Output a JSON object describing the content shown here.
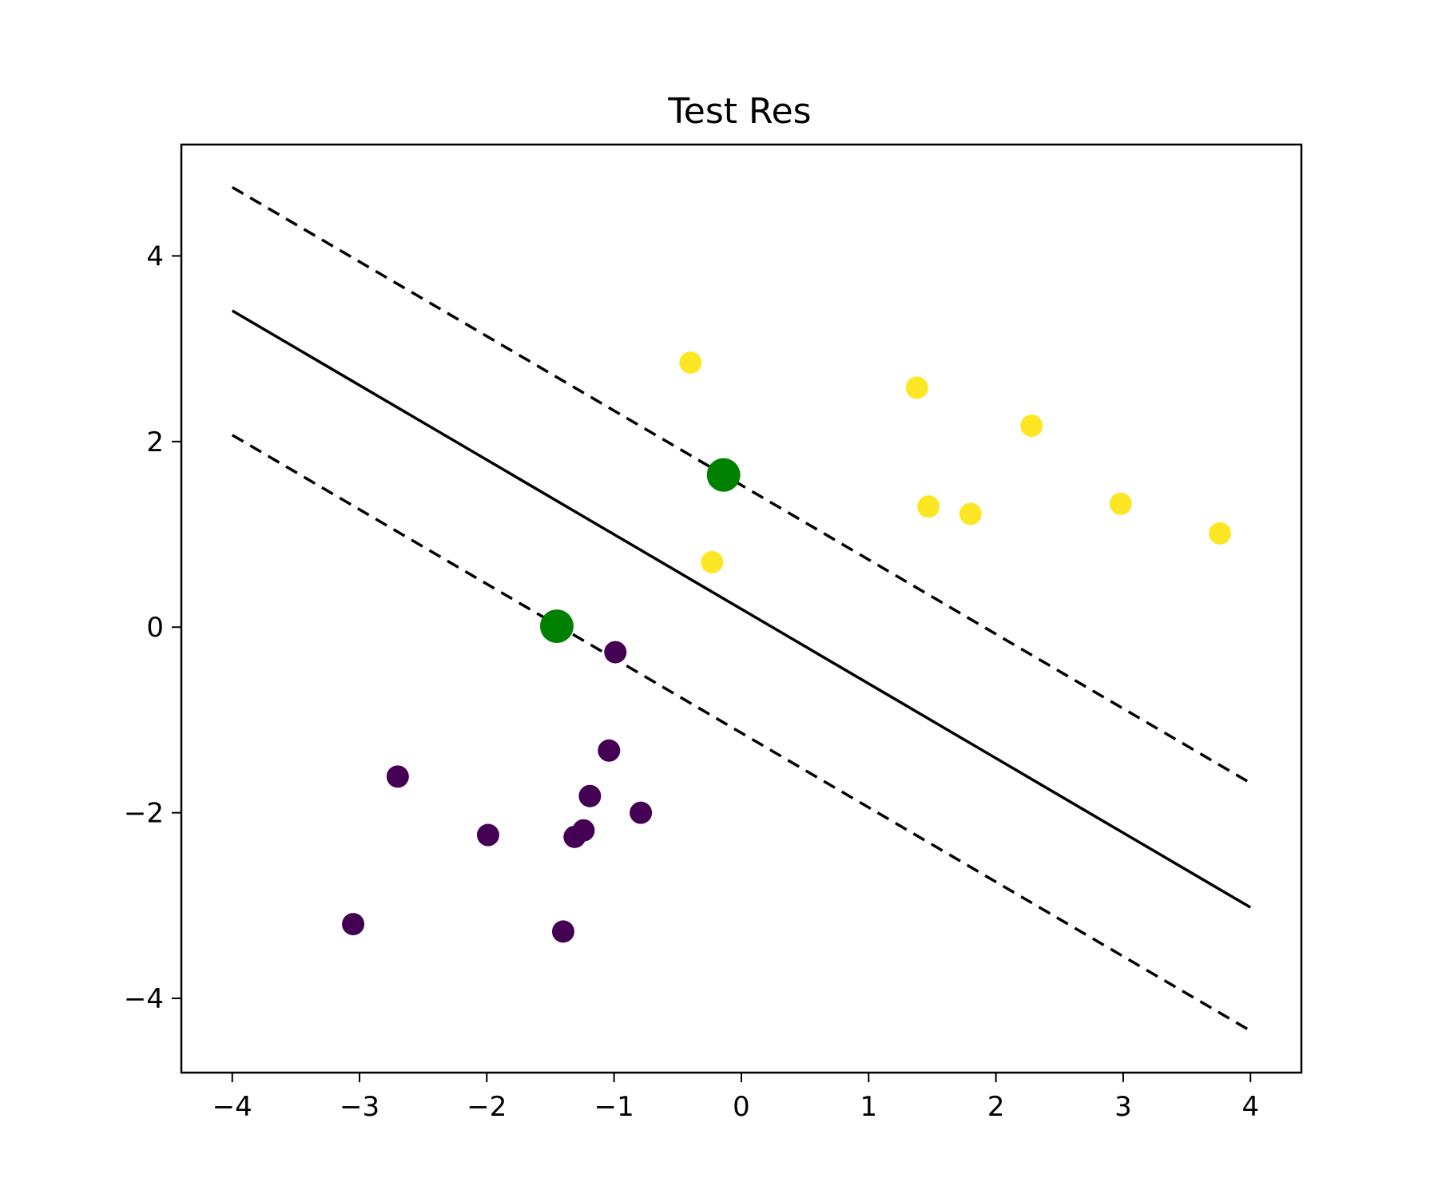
{
  "chart_data": {
    "type": "scatter",
    "title": "Test Res",
    "xlabel": "",
    "ylabel": "",
    "xlim": [
      -4.4,
      4.4
    ],
    "ylim": [
      -4.8,
      5.2
    ],
    "grid": false,
    "xticks": [
      -4,
      -3,
      -2,
      -1,
      0,
      1,
      2,
      3,
      4
    ],
    "yticks": [
      -4,
      -2,
      0,
      2,
      4
    ],
    "xtick_labels": [
      "−4",
      "−3",
      "−2",
      "−1",
      "0",
      "1",
      "2",
      "3",
      "4"
    ],
    "ytick_labels": [
      "−4",
      "−2",
      "0",
      "2",
      "4"
    ],
    "series": [
      {
        "class": 1,
        "color": "#fde725",
        "points": [
          [
            -0.4,
            2.85
          ],
          [
            1.38,
            2.58
          ],
          [
            2.28,
            2.17
          ],
          [
            1.47,
            1.3
          ],
          [
            1.8,
            1.22
          ],
          [
            2.98,
            1.33
          ],
          [
            3.76,
            1.01
          ],
          [
            -0.23,
            0.7
          ]
        ]
      },
      {
        "class": 0,
        "color": "#440154",
        "points": [
          [
            -0.99,
            -0.27
          ],
          [
            -1.04,
            -1.33
          ],
          [
            -2.7,
            -1.61
          ],
          [
            -1.19,
            -1.82
          ],
          [
            -0.79,
            -2.0
          ],
          [
            -1.99,
            -2.24
          ],
          [
            -1.24,
            -2.19
          ],
          [
            -1.31,
            -2.26
          ],
          [
            -3.05,
            -3.2
          ],
          [
            -1.4,
            -3.28
          ]
        ]
      }
    ],
    "support_vectors": {
      "color": "#008000",
      "points": [
        [
          -0.14,
          1.64
        ],
        [
          -1.45,
          0.01
        ]
      ]
    },
    "lines": [
      {
        "style": "solid",
        "color": "#000000",
        "x": [
          -4,
          4
        ],
        "y": [
          3.41,
          -3.02
        ]
      },
      {
        "style": "dashed",
        "color": "#000000",
        "x": [
          -4,
          4
        ],
        "y": [
          4.74,
          -1.68
        ]
      },
      {
        "style": "dashed",
        "color": "#000000",
        "x": [
          -4,
          4
        ],
        "y": [
          2.07,
          -4.35
        ]
      }
    ]
  }
}
